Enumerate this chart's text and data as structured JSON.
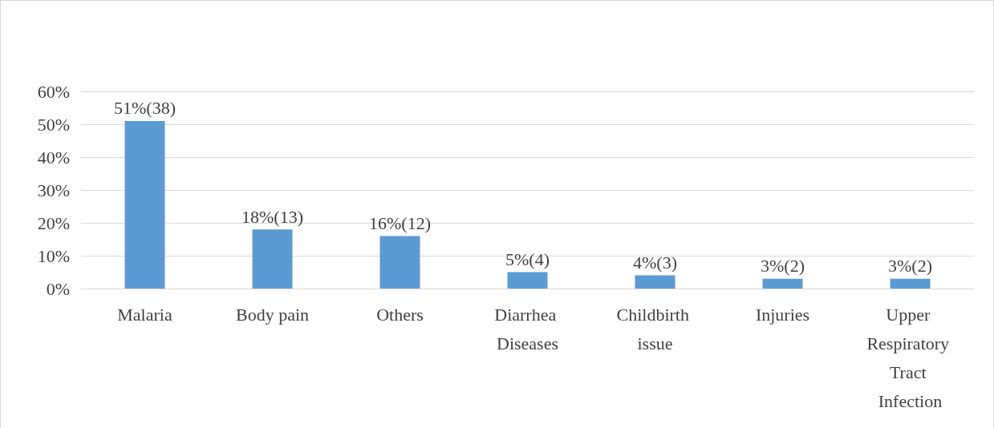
{
  "chart_data": {
    "type": "bar",
    "categories": [
      "Malaria",
      "Body pain",
      "Others",
      "Diarrhea Diseases",
      "Childbirth issue",
      "Injuries",
      "Upper Respiratory Tract Infection"
    ],
    "values": [
      51,
      18,
      16,
      5,
      4,
      3,
      3
    ],
    "value_labels": [
      "51%(38)",
      "18%(13)",
      "16%(12)",
      "5%(4)",
      "4%(3)",
      "3%(2)",
      "3%(2)"
    ],
    "color": "#5b9bd5",
    "ylim": [
      0,
      60
    ],
    "yticks": [
      {
        "value": 0,
        "label": "0%"
      },
      {
        "value": 10,
        "label": "10%"
      },
      {
        "value": 20,
        "label": "20%"
      },
      {
        "value": 30,
        "label": "30%"
      },
      {
        "value": 40,
        "label": "40%"
      },
      {
        "value": 50,
        "label": "50%"
      },
      {
        "value": 60,
        "label": "60%"
      }
    ],
    "grid": "y"
  }
}
